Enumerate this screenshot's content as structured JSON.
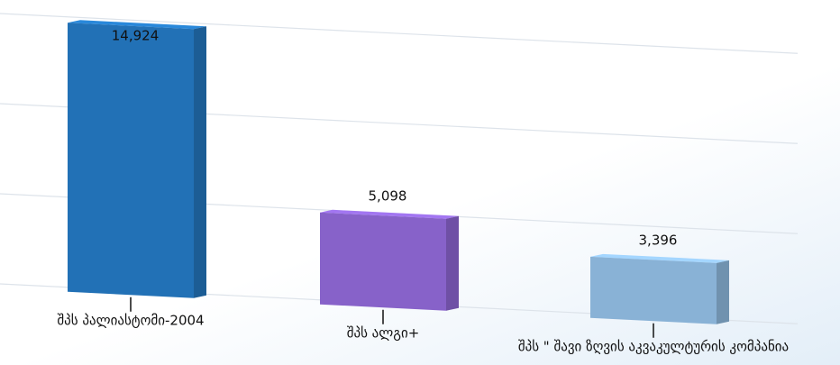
{
  "chart_data": {
    "type": "bar",
    "categories": [
      "შპს პალიასტომი-2004",
      "შპს ალგი+",
      "შპს \" შავი ზღვის აკვაკულტურის კომპანია"
    ],
    "values": [
      14924,
      5098,
      3396
    ],
    "value_labels": [
      "14,924",
      "5,098",
      "3,396"
    ],
    "colors": [
      "#2271b6",
      "#8762c9",
      "#89b2d6"
    ],
    "ylim": [
      0,
      15000
    ],
    "yticks": [
      0,
      5000,
      10000,
      15000
    ],
    "grid": true
  }
}
